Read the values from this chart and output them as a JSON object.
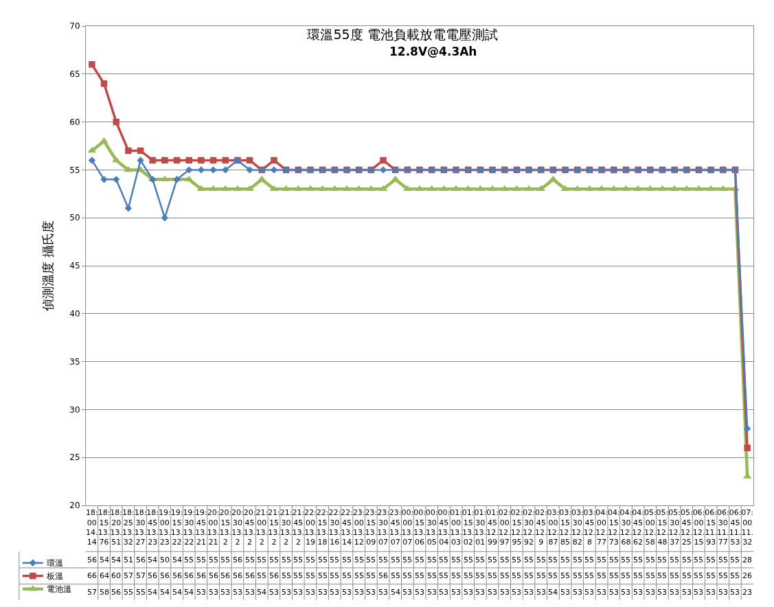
{
  "chart_data": {
    "type": "line",
    "title": "環溫55度 電池負載放電電壓測試",
    "subtitle": "12.8V@4.3Ah",
    "ylabel": "偵測溫度 攝氏度",
    "categories": [
      "18:00 14.14",
      "18:15 13.76",
      "18:20 13.51",
      "18:25 13.32",
      "18:30 13.27",
      "18:45 13.23",
      "19:00 13.23",
      "19:15 13.22",
      "19:30 13.22",
      "19:45 13.21",
      "20:00 13.21",
      "20:15 13.2",
      "20:30 13.2",
      "20:45 13.2",
      "21:00 13.2",
      "21:15 13.2",
      "21:30 13.2",
      "21:45 13.2",
      "22:00 13.19",
      "22:15 13.18",
      "22:30 13.16",
      "22:45 13.14",
      "23:00 13.12",
      "23:15 13.09",
      "23:30 13.07",
      "23:45 13.07",
      "00:00 13.07",
      "00:15 13.06",
      "00:30 13.05",
      "00:45 13.04",
      "01:00 13.03",
      "01:15 13.02",
      "01:30 13.01",
      "01:45 12.99",
      "02:00 12.97",
      "02:15 12.95",
      "02:30 12.92",
      "02:45 12.9",
      "03:00 12.87",
      "03:15 12.85",
      "03:30 12.82",
      "03:45 12.8",
      "04:00 12.77",
      "04:15 12.73",
      "04:30 12.68",
      "04:45 12.62",
      "05:00 12.58",
      "05:15 12.48",
      "05:30 12.37",
      "05:45 12.25",
      "06:00 12.15",
      "06:15 11.93",
      "06:30 11.77",
      "06:45 11.53",
      "07:00 11.32"
    ],
    "series": [
      {
        "name": "環溫",
        "color": "#4a7ebb",
        "marker": "diamond",
        "values": [
          56,
          54,
          54,
          51,
          56,
          54,
          50,
          54,
          55,
          55,
          55,
          55,
          56,
          55,
          55,
          55,
          55,
          55,
          55,
          55,
          55,
          55,
          55,
          55,
          55,
          55,
          55,
          55,
          55,
          55,
          55,
          55,
          55,
          55,
          55,
          55,
          55,
          55,
          55,
          55,
          55,
          55,
          55,
          55,
          55,
          55,
          55,
          55,
          55,
          55,
          55,
          55,
          55,
          55,
          28
        ]
      },
      {
        "name": "板溫",
        "color": "#be4b48",
        "marker": "square",
        "values": [
          66,
          64,
          60,
          57,
          57,
          56,
          56,
          56,
          56,
          56,
          56,
          56,
          56,
          56,
          55,
          56,
          55,
          55,
          55,
          55,
          55,
          55,
          55,
          55,
          56,
          55,
          55,
          55,
          55,
          55,
          55,
          55,
          55,
          55,
          55,
          55,
          55,
          55,
          55,
          55,
          55,
          55,
          55,
          55,
          55,
          55,
          55,
          55,
          55,
          55,
          55,
          55,
          55,
          55,
          26
        ]
      },
      {
        "name": "電池溫",
        "color": "#98b954",
        "marker": "triangle",
        "values": [
          57,
          58,
          56,
          55,
          55,
          54,
          54,
          54,
          54,
          53,
          53,
          53,
          53,
          53,
          54,
          53,
          53,
          53,
          53,
          53,
          53,
          53,
          53,
          53,
          53,
          54,
          53,
          53,
          53,
          53,
          53,
          53,
          53,
          53,
          53,
          53,
          53,
          53,
          54,
          53,
          53,
          53,
          53,
          53,
          53,
          53,
          53,
          53,
          53,
          53,
          53,
          53,
          53,
          53,
          23
        ]
      }
    ],
    "ylim": [
      20,
      70
    ],
    "yticks": [
      20,
      25,
      30,
      35,
      40,
      45,
      50,
      55,
      60,
      65,
      70
    ],
    "grid": "y",
    "legend": "bottom left",
    "data_labels": true
  }
}
